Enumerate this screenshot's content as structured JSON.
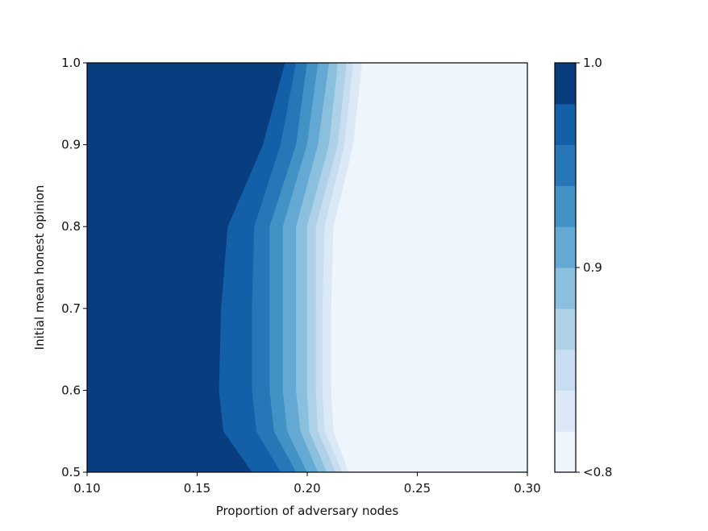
{
  "chart_data": {
    "type": "heatmap",
    "subtype": "filled-contour",
    "title": "",
    "xlabel": "Proportion of adversary nodes",
    "ylabel": "Initial mean honest opinion",
    "xlim": [
      0.1,
      0.3
    ],
    "ylim": [
      0.5,
      1.0
    ],
    "x_ticks": [
      "0.10",
      "0.15",
      "0.20",
      "0.25",
      "0.30"
    ],
    "y_ticks": [
      "0.5",
      "0.6",
      "0.7",
      "0.8",
      "0.9",
      "1.0"
    ],
    "colorbar": {
      "colormap": "Blues",
      "range": [
        0.8,
        1.0
      ],
      "tick_labels": [
        "<0.8",
        "0.9",
        "1.0"
      ],
      "levels": [
        0.8,
        0.82,
        0.84,
        0.86,
        0.88,
        0.9,
        0.92,
        0.94,
        0.96,
        0.98,
        1.0
      ],
      "level_colors": [
        "#eef5fc",
        "#dbe9f6",
        "#c9ddf0",
        "#afd1e7",
        "#8abfdd",
        "#64a9d3",
        "#4292c6",
        "#2676b8",
        "#1460a8",
        "#083d7f"
      ]
    },
    "contour_y": [
      0.5,
      0.55,
      0.6,
      0.7,
      0.8,
      0.9,
      1.0
    ],
    "contours": [
      {
        "level": 0.98,
        "x": [
          0.175,
          0.162,
          0.16,
          0.161,
          0.164,
          0.18,
          0.19
        ]
      },
      {
        "level": 0.96,
        "x": [
          0.188,
          0.177,
          0.175,
          0.175,
          0.176,
          0.188,
          0.195
        ]
      },
      {
        "level": 0.94,
        "x": [
          0.195,
          0.185,
          0.183,
          0.183,
          0.183,
          0.195,
          0.2
        ]
      },
      {
        "level": 0.92,
        "x": [
          0.2,
          0.191,
          0.189,
          0.189,
          0.189,
          0.2,
          0.205
        ]
      },
      {
        "level": 0.9,
        "x": [
          0.205,
          0.197,
          0.195,
          0.195,
          0.195,
          0.205,
          0.21
        ]
      },
      {
        "level": 0.88,
        "x": [
          0.209,
          0.201,
          0.2,
          0.2,
          0.2,
          0.21,
          0.214
        ]
      },
      {
        "level": 0.86,
        "x": [
          0.213,
          0.205,
          0.204,
          0.204,
          0.204,
          0.214,
          0.218
        ]
      },
      {
        "level": 0.84,
        "x": [
          0.216,
          0.208,
          0.207,
          0.207,
          0.208,
          0.217,
          0.221
        ]
      },
      {
        "level": 0.82,
        "x": [
          0.219,
          0.212,
          0.211,
          0.211,
          0.212,
          0.221,
          0.225
        ]
      }
    ]
  }
}
